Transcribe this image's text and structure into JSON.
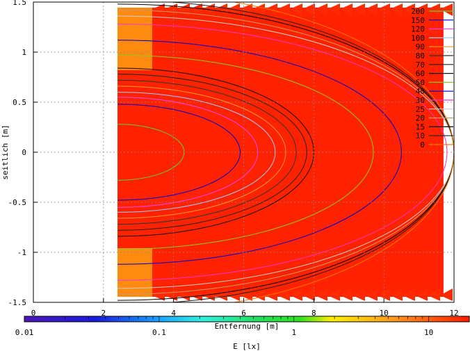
{
  "chart_data": {
    "type": "heatmap",
    "title": "",
    "xlabel": "Entfernung [m]",
    "ylabel": "seitlich [m]",
    "colorbar_label": "E [lx]",
    "xlim": [
      0,
      12
    ],
    "ylim": [
      -1.5,
      1.5
    ],
    "x_ticks": [
      0,
      2,
      4,
      6,
      8,
      10,
      12
    ],
    "y_ticks": [
      -1.5,
      -1,
      -0.5,
      0,
      0.5,
      1,
      1.5
    ],
    "y_tick_labels": [
      "-1.5",
      "-1",
      "-0.5",
      "0",
      "0.5",
      "1",
      "1.5"
    ],
    "grid": true,
    "legend_position": "top-right",
    "colorbar": {
      "scale": "log",
      "range": [
        0.01,
        20
      ],
      "tick_values": [
        0.01,
        0.1,
        1,
        10
      ],
      "tick_labels": [
        "0.01",
        "0.1",
        "1",
        "10"
      ]
    },
    "field_extent": {
      "x": [
        2.4,
        11.7
      ],
      "y": [
        -1.5,
        1.5
      ]
    },
    "contours": [
      {
        "level": "200",
        "color": "#66cc33",
        "xmax": 4.3,
        "halfwidth": 0.28
      },
      {
        "level": "150",
        "color": "#0000cc",
        "xmax": 5.9,
        "halfwidth": 0.48
      },
      {
        "level": "120",
        "color": "#ff44ff",
        "xmax": 6.4,
        "halfwidth": 0.55
      },
      {
        "level": "100",
        "color": "#99ccff",
        "xmax": 6.9,
        "halfwidth": 0.6
      },
      {
        "level": "90",
        "color": "#ff9933",
        "xmax": 7.2,
        "halfwidth": 0.66
      },
      {
        "level": "80",
        "color": "#333333",
        "xmax": 7.5,
        "halfwidth": 0.72
      },
      {
        "level": "70",
        "color": "#222222",
        "xmax": 7.8,
        "halfwidth": 0.78
      },
      {
        "level": "60",
        "color": "#111111",
        "xmax": 8.0,
        "halfwidth": 0.84
      },
      {
        "level": "50",
        "color": "#88cc22",
        "xmax": 9.7,
        "halfwidth": 0.97
      },
      {
        "level": "40",
        "color": "#0000cc",
        "xmax": 10.5,
        "halfwidth": 1.12
      },
      {
        "level": "30",
        "color": "#ff33cc",
        "xmax": 11.8,
        "halfwidth": 1.28
      },
      {
        "level": "25",
        "color": "#cccccc",
        "xmax": 12.0,
        "halfwidth": 1.36
      },
      {
        "level": "20",
        "color": "#cc9966",
        "xmax": 12.0,
        "halfwidth": 1.42
      },
      {
        "level": "15",
        "color": "#000000",
        "xmax": 12.0,
        "halfwidth": 1.48
      },
      {
        "level": "10",
        "color": "#222222",
        "xmax": 12.0,
        "halfwidth": 1.52
      },
      {
        "level": "0",
        "color": "#ff7700",
        "xmax": 12.0,
        "halfwidth": 1.6
      }
    ]
  }
}
